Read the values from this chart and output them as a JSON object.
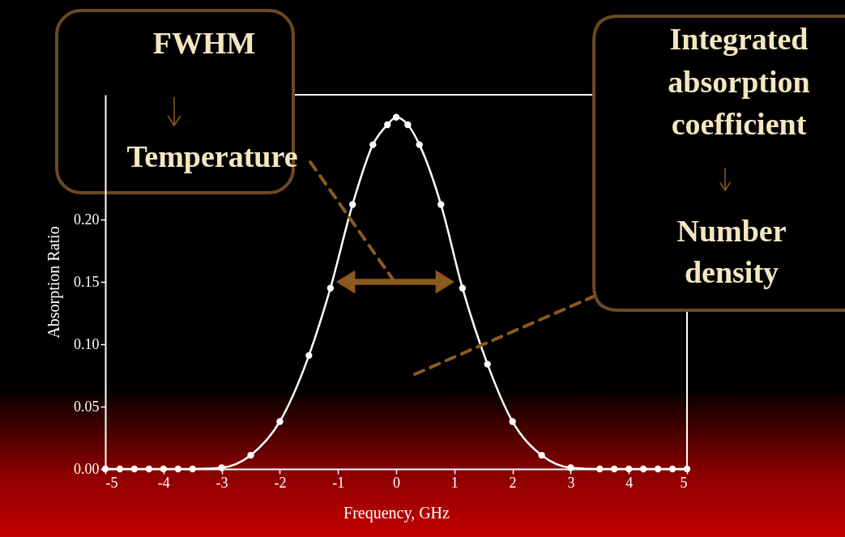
{
  "chart_data": {
    "type": "line",
    "xlabel": "Frequency, GHz",
    "ylabel": "Absorption Ratio",
    "x": [
      -5,
      -4.75,
      -4.5,
      -4.25,
      -4,
      -3.75,
      -3.5,
      -3,
      -2.5,
      -2,
      -1.5,
      -1.13,
      -0.75,
      -0.4,
      -0.15,
      0,
      0.2,
      0.4,
      0.77,
      1.14,
      1.57,
      2,
      2.5,
      3,
      3.5,
      3.75,
      4,
      4.25,
      4.5,
      4.75,
      5
    ],
    "series": [
      {
        "color": "#ffffff",
        "values": [
          0,
          0,
          0,
          0,
          0,
          0,
          0,
          0.001,
          0.011,
          0.038,
          0.091,
          0.145,
          0.212,
          0.26,
          0.276,
          0.282,
          0.276,
          0.26,
          0.212,
          0.145,
          0.084,
          0.038,
          0.011,
          0.001,
          0,
          0,
          0,
          0,
          0,
          0,
          0
        ]
      }
    ],
    "xlim": [
      -5,
      5
    ],
    "xticks": [
      -5,
      -4,
      -3,
      -2,
      -1,
      0,
      1,
      2,
      3,
      4,
      5
    ],
    "ylim": [
      0,
      0.3
    ],
    "yticks": [
      {
        "value": 0,
        "label": "0.00"
      },
      {
        "value": 0.05,
        "label": "0.05"
      },
      {
        "value": 0.1,
        "label": "0.10"
      },
      {
        "value": 0.15,
        "label": "0.15"
      },
      {
        "value": 0.2,
        "label": "0.20"
      }
    ],
    "grid": false,
    "marker": "circle",
    "line_style": "solid",
    "annotations": [
      "FWHM",
      "Temperature",
      "Integrated absorption coefficient",
      "Number density"
    ]
  }
}
